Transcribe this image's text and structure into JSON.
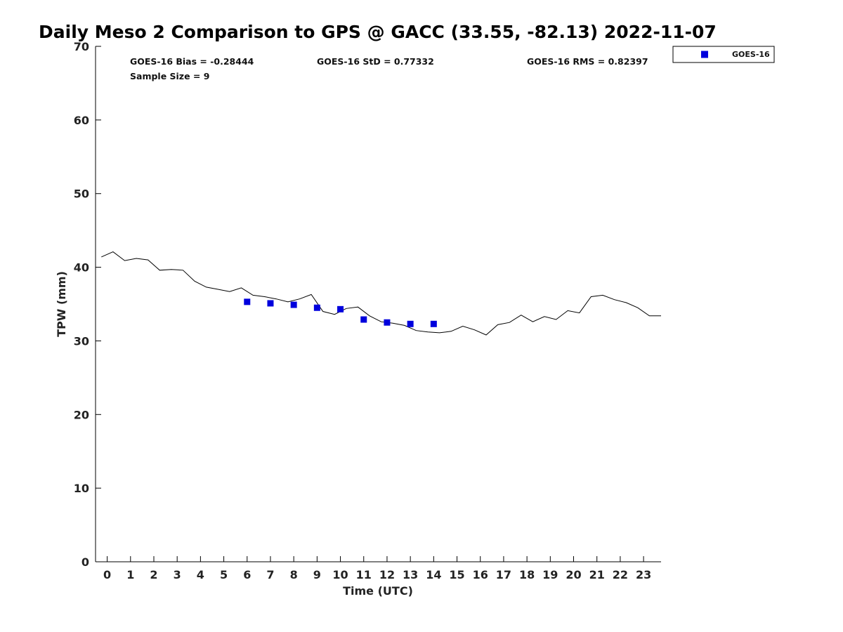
{
  "chart_data": {
    "type": "scatter",
    "title": "Daily Meso 2 Comparison to GPS @ GACC (33.55, -82.13) 2022-11-07",
    "xlabel": "Time (UTC)",
    "ylabel": "TPW (mm)",
    "xlim": [
      -0.5,
      23.75
    ],
    "ylim": [
      0,
      70
    ],
    "x_ticks": [
      0,
      1,
      2,
      3,
      4,
      5,
      6,
      7,
      8,
      9,
      10,
      11,
      12,
      13,
      14,
      15,
      16,
      17,
      18,
      19,
      20,
      21,
      22,
      23
    ],
    "y_ticks": [
      0,
      10,
      20,
      30,
      40,
      50,
      60,
      70
    ],
    "grid": false,
    "legend_position": "outside top-right",
    "stats": {
      "bias": "GOES-16 Bias = -0.28444",
      "std": "GOES-16 StD = 0.77332",
      "rms": "GOES-16 RMS = 0.82397",
      "sample": "Sample Size = 9"
    },
    "series": [
      {
        "name": "GOES-16",
        "kind": "markers",
        "marker": "square",
        "color": "#0000dd",
        "x": [
          6,
          7,
          8,
          9,
          10,
          11,
          12,
          13,
          14
        ],
        "y": [
          35.3,
          35.1,
          34.9,
          34.5,
          34.3,
          32.9,
          32.5,
          32.3,
          32.3
        ]
      },
      {
        "kind": "line",
        "color": "#000000",
        "x": [
          -0.25,
          0.25,
          0.75,
          1.25,
          1.75,
          2.25,
          2.75,
          3.25,
          3.75,
          4.25,
          4.75,
          5.25,
          5.75,
          6.25,
          6.75,
          7.25,
          7.75,
          8.25,
          8.75,
          9.25,
          9.75,
          10.25,
          10.75,
          11.25,
          11.75,
          12.25,
          12.75,
          13.25,
          13.75,
          14.25,
          14.75,
          15.25,
          15.75,
          16.25,
          16.75,
          17.25,
          17.75,
          18.25,
          18.75,
          19.25,
          19.75,
          20.25,
          20.75,
          21.25,
          21.75,
          22.25,
          22.75,
          23.25,
          23.75
        ],
        "y": [
          41.4,
          42.1,
          40.9,
          41.2,
          41.0,
          39.6,
          39.7,
          39.6,
          38.1,
          37.3,
          37.0,
          36.7,
          37.2,
          36.2,
          36.0,
          35.7,
          35.3,
          35.7,
          36.3,
          34.0,
          33.6,
          34.4,
          34.6,
          33.4,
          32.6,
          32.4,
          32.1,
          31.4,
          31.2,
          31.1,
          31.3,
          32.0,
          31.5,
          30.8,
          32.2,
          32.5,
          33.5,
          32.6,
          33.3,
          32.9,
          34.1,
          33.8,
          36.0,
          36.2,
          35.6,
          35.2,
          34.5,
          33.4,
          33.4
        ]
      }
    ]
  }
}
